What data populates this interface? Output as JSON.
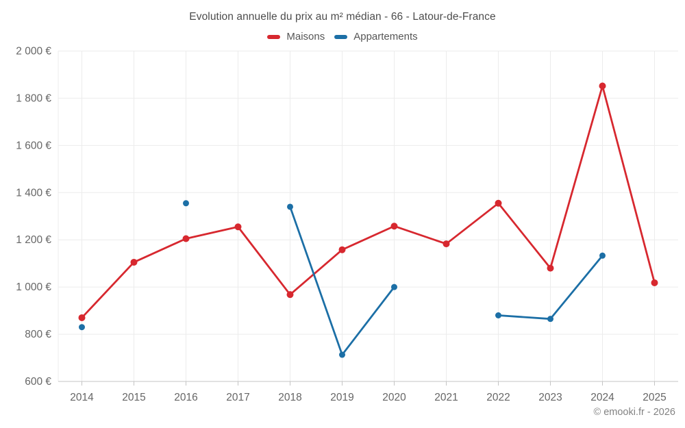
{
  "title": "Evolution annuelle du prix au m² médian - 66 - Latour-de-France",
  "footer_credit": "© emooki.fr - 2026",
  "legend": {
    "items": [
      {
        "label": "Maisons",
        "color": "#d7282f"
      },
      {
        "label": "Appartements",
        "color": "#1c6fa6"
      }
    ]
  },
  "chart_data": {
    "type": "line",
    "title": "Evolution annuelle du prix au m² médian - 66 - Latour-de-France",
    "categories": [
      "2014",
      "2015",
      "2016",
      "2017",
      "2018",
      "2019",
      "2020",
      "2021",
      "2022",
      "2023",
      "2024",
      "2025"
    ],
    "series": [
      {
        "name": "Maisons",
        "color": "#d7282f",
        "point_radius": 5,
        "values": [
          870,
          1105,
          1205,
          1255,
          968,
          1158,
          1258,
          1183,
          1355,
          1080,
          1852,
          1018
        ]
      },
      {
        "name": "Appartements",
        "color": "#1c6fa6",
        "point_radius": 4.5,
        "values": [
          830,
          null,
          1355,
          null,
          1340,
          713,
          1000,
          null,
          880,
          865,
          1133,
          null
        ]
      }
    ],
    "xlabel": "",
    "ylabel": "",
    "ylim": [
      600,
      2000
    ],
    "ytick_step": 200,
    "yticks": [
      600,
      800,
      1000,
      1200,
      1400,
      1600,
      1800,
      2000
    ],
    "ytick_labels": [
      "600 €",
      "800 €",
      "1 000 €",
      "1 200 €",
      "1 400 €",
      "1 600 €",
      "1 800 €",
      "2 000 €"
    ],
    "currency_suffix": " €",
    "grid": true,
    "legend_position": "top"
  }
}
